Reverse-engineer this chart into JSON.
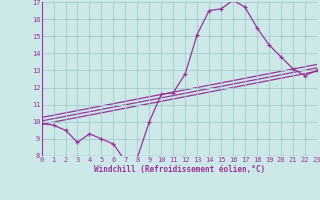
{
  "title": "",
  "xlabel": "Windchill (Refroidissement éolien,°C)",
  "ylabel": "",
  "background_color": "#cce8e8",
  "grid_color": "#aacfcf",
  "line_color": "#993399",
  "xmin": 0,
  "xmax": 23,
  "ymin": 8,
  "ymax": 17,
  "curve1_x": [
    0,
    1,
    2,
    3,
    4,
    5,
    6,
    7,
    8,
    9,
    10,
    11,
    12,
    13,
    14,
    15,
    16,
    17,
    18,
    19,
    20,
    21,
    22,
    23
  ],
  "curve1_y": [
    9.9,
    9.8,
    9.5,
    8.8,
    9.3,
    9.0,
    8.7,
    7.7,
    7.9,
    10.0,
    11.6,
    11.7,
    12.8,
    15.1,
    16.5,
    16.6,
    17.1,
    16.7,
    15.5,
    14.5,
    13.8,
    13.1,
    12.7,
    13.0
  ],
  "line1_x": [
    0,
    23
  ],
  "line1_y": [
    9.85,
    12.95
  ],
  "line2_x": [
    0,
    23
  ],
  "line2_y": [
    10.05,
    13.15
  ],
  "line3_x": [
    0,
    23
  ],
  "line3_y": [
    10.25,
    13.35
  ],
  "tick_fontsize": 5.0,
  "label_fontsize": 5.5
}
